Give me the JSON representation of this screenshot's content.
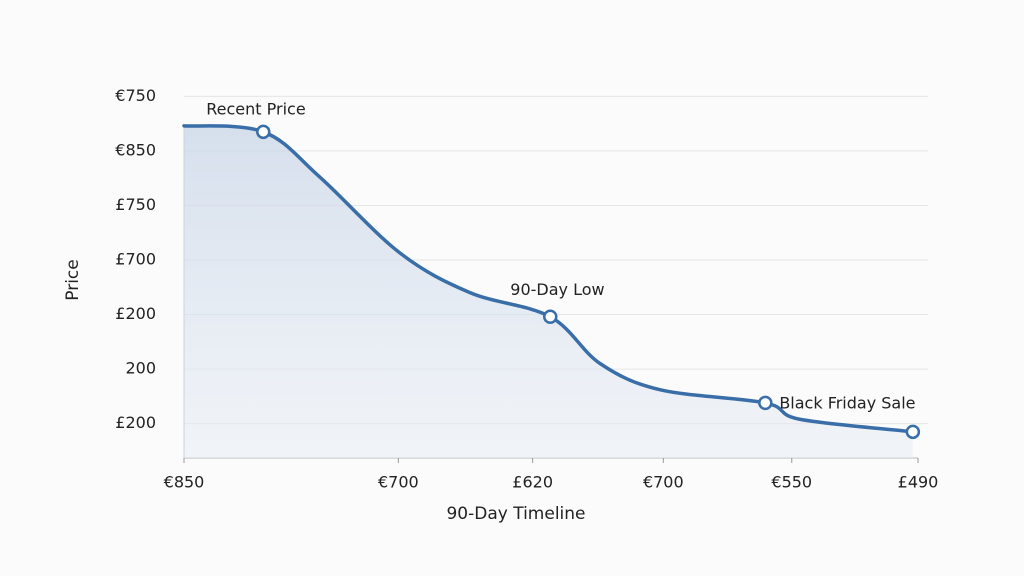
{
  "chart_data": {
    "type": "line",
    "xlabel": "90-Day Timeline",
    "ylabel": "Price",
    "xlim": [
      0,
      100
    ],
    "xticks": [
      {
        "value": 0,
        "label": "€850"
      },
      {
        "value": 29.2,
        "label": "€700"
      },
      {
        "value": 47.5,
        "label": "£620"
      },
      {
        "value": 65.3,
        "label": "€700"
      },
      {
        "value": 82.8,
        "label": "€550"
      },
      {
        "value": 100,
        "label": "£490"
      }
    ],
    "ylim": [
      -0.63,
      6.3
    ],
    "yticks": [
      {
        "value": 0,
        "label": "£200"
      },
      {
        "value": 1,
        "label": "200"
      },
      {
        "value": 2,
        "label": "£200"
      },
      {
        "value": 3,
        "label": "£700"
      },
      {
        "value": 4,
        "label": "£750"
      },
      {
        "value": 5,
        "label": "€850"
      },
      {
        "value": 6,
        "label": "€750"
      }
    ],
    "grid": true,
    "series": [
      {
        "color": "#3a6ea8",
        "x": [
          0,
          10.8,
          18.5,
          29.4,
          39,
          49.9,
          56.7,
          64.9,
          79.2,
          83.9,
          99.3
        ],
        "values": [
          5.46,
          5.35,
          4.52,
          3.13,
          2.4,
          1.96,
          1.1,
          0.62,
          0.38,
          0.08,
          -0.15
        ]
      }
    ],
    "annotations": [
      {
        "text": "Recent Price",
        "x": 10.8,
        "y": 5.35
      },
      {
        "text": "90-Day Low",
        "x": 49.9,
        "y": 1.96
      },
      {
        "text": "Black Friday Sale",
        "x": 79.2,
        "y": 0.38
      },
      {
        "x": 99.3,
        "y": -0.15
      }
    ]
  }
}
